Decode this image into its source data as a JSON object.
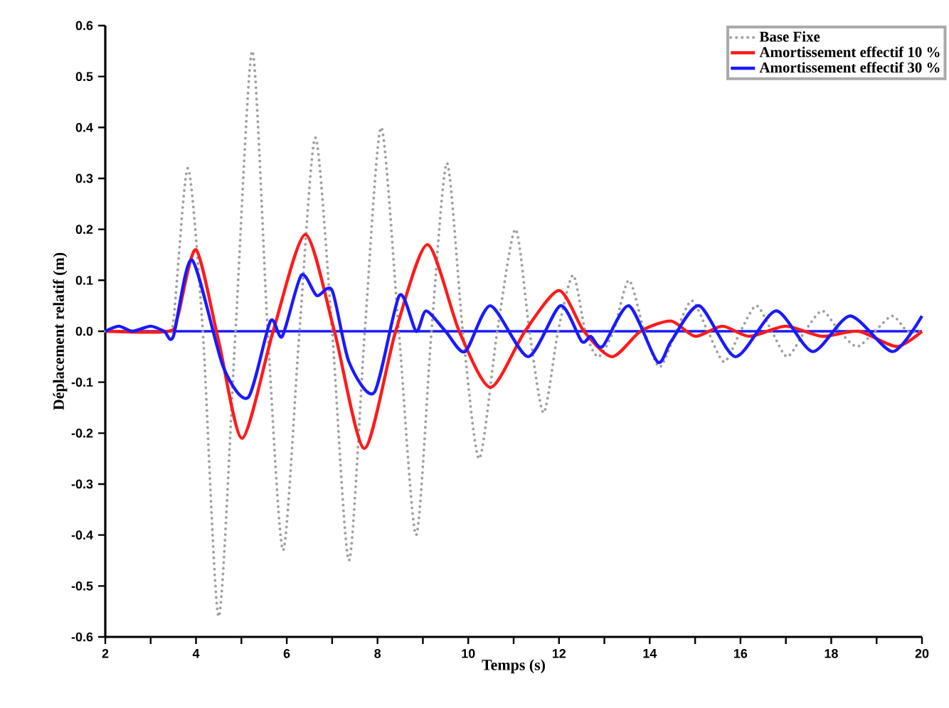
{
  "chart_data": {
    "type": "line",
    "xlabel": "Temps (s)",
    "ylabel": "Déplacement relatif (m)",
    "xlim": [
      2,
      20
    ],
    "ylim": [
      -0.6,
      0.6
    ],
    "xticks": [
      2,
      {
        "value": 3,
        "label": null
      },
      4,
      {
        "value": 5,
        "label": null
      },
      6,
      {
        "value": 7,
        "label": null
      },
      8,
      {
        "value": 9,
        "label": null
      },
      10,
      {
        "value": 11,
        "label": null
      },
      12,
      {
        "value": 13,
        "label": null
      },
      14,
      {
        "value": 15,
        "label": null
      },
      16,
      {
        "value": 17,
        "label": null
      },
      18,
      {
        "value": 19,
        "label": null
      },
      20
    ],
    "yticks": [
      -0.6,
      -0.5,
      -0.4,
      -0.3,
      -0.2,
      -0.1,
      {
        "value": 0,
        "label": "0.0"
      },
      0.1,
      0.2,
      0.3,
      0.4,
      0.5,
      0.6
    ],
    "legend": "top right",
    "marker": "none",
    "grid": false,
    "ref_lines": [
      {
        "axis": "y",
        "value": 0,
        "color": "#1a1aff"
      }
    ],
    "series": [
      {
        "name": "Base Fixe",
        "color": "#a0a0a0",
        "line_style": "dotted",
        "x": [
          2,
          3.3,
          3.5,
          3.82,
          4.15,
          4.5,
          4.87,
          5.24,
          5.58,
          5.92,
          6.28,
          6.63,
          7.0,
          7.37,
          7.72,
          8.08,
          8.47,
          8.85,
          9.19,
          9.53,
          9.88,
          10.24,
          10.64,
          11.04,
          11.35,
          11.66,
          11.98,
          12.31,
          12.58,
          12.86,
          13.2,
          13.54,
          13.88,
          14.22,
          14.58,
          14.93,
          15.28,
          15.64,
          16.0,
          16.35,
          16.69,
          17.03,
          17.42,
          17.8,
          18.18,
          18.57,
          18.96,
          19.35,
          19.68,
          20
        ],
        "values": [
          0,
          0,
          0.02,
          0.32,
          0,
          -0.56,
          0,
          0.55,
          0,
          -0.43,
          0,
          0.38,
          0,
          -0.45,
          0,
          0.4,
          0,
          -0.4,
          0,
          0.33,
          0,
          -0.25,
          0,
          0.2,
          0,
          -0.16,
          0,
          0.11,
          0,
          -0.05,
          0,
          0.1,
          0,
          -0.07,
          0,
          0.06,
          0,
          -0.06,
          0,
          0.05,
          0,
          -0.05,
          0,
          0.04,
          0,
          -0.03,
          0,
          0.03,
          0,
          0
        ]
      },
      {
        "name": "Amortissement effectif 10 %",
        "color": "#ff1a1a",
        "line_style": "solid",
        "x": [
          2,
          3.4,
          3.6,
          4.0,
          4.5,
          5.02,
          5.7,
          6.41,
          7.05,
          7.71,
          8.4,
          9.1,
          9.8,
          10.49,
          11.25,
          12.0,
          12.55,
          13.17,
          13.8,
          14.47,
          15.0,
          15.6,
          16.2,
          17.0,
          17.8,
          18.6,
          19.44,
          20
        ],
        "values": [
          0,
          0,
          0.03,
          0.16,
          -0.02,
          -0.21,
          0,
          0.19,
          0,
          -0.23,
          0,
          0.17,
          0,
          -0.11,
          0,
          0.08,
          0,
          -0.05,
          0,
          0.02,
          -0.01,
          0.01,
          -0.01,
          0.01,
          -0.01,
          0,
          -0.03,
          0
        ]
      },
      {
        "name": "Amortissement effectif 30 %",
        "color": "#1a1aff",
        "line_style": "solid",
        "x": [
          2,
          2.3,
          2.6,
          3.0,
          3.3,
          3.5,
          3.91,
          4.6,
          5.15,
          5.64,
          5.9,
          6.32,
          6.66,
          7.0,
          7.37,
          7.93,
          8.48,
          8.85,
          9.07,
          9.5,
          9.93,
          10.49,
          11.32,
          12.03,
          12.5,
          12.7,
          12.96,
          13.54,
          14.17,
          14.47,
          15.09,
          15.89,
          16.78,
          17.59,
          18.42,
          19.35,
          20
        ],
        "values": [
          0,
          0.01,
          0,
          0.01,
          0,
          -0.01,
          0.14,
          -0.07,
          -0.13,
          0.02,
          -0.01,
          0.11,
          0.07,
          0.08,
          -0.06,
          -0.12,
          0.07,
          0,
          0.04,
          0,
          -0.04,
          0.05,
          -0.05,
          0.05,
          -0.02,
          -0.01,
          -0.03,
          0.05,
          -0.06,
          -0.02,
          0.05,
          -0.05,
          0.04,
          -0.04,
          0.03,
          -0.04,
          0.03
        ]
      }
    ]
  }
}
